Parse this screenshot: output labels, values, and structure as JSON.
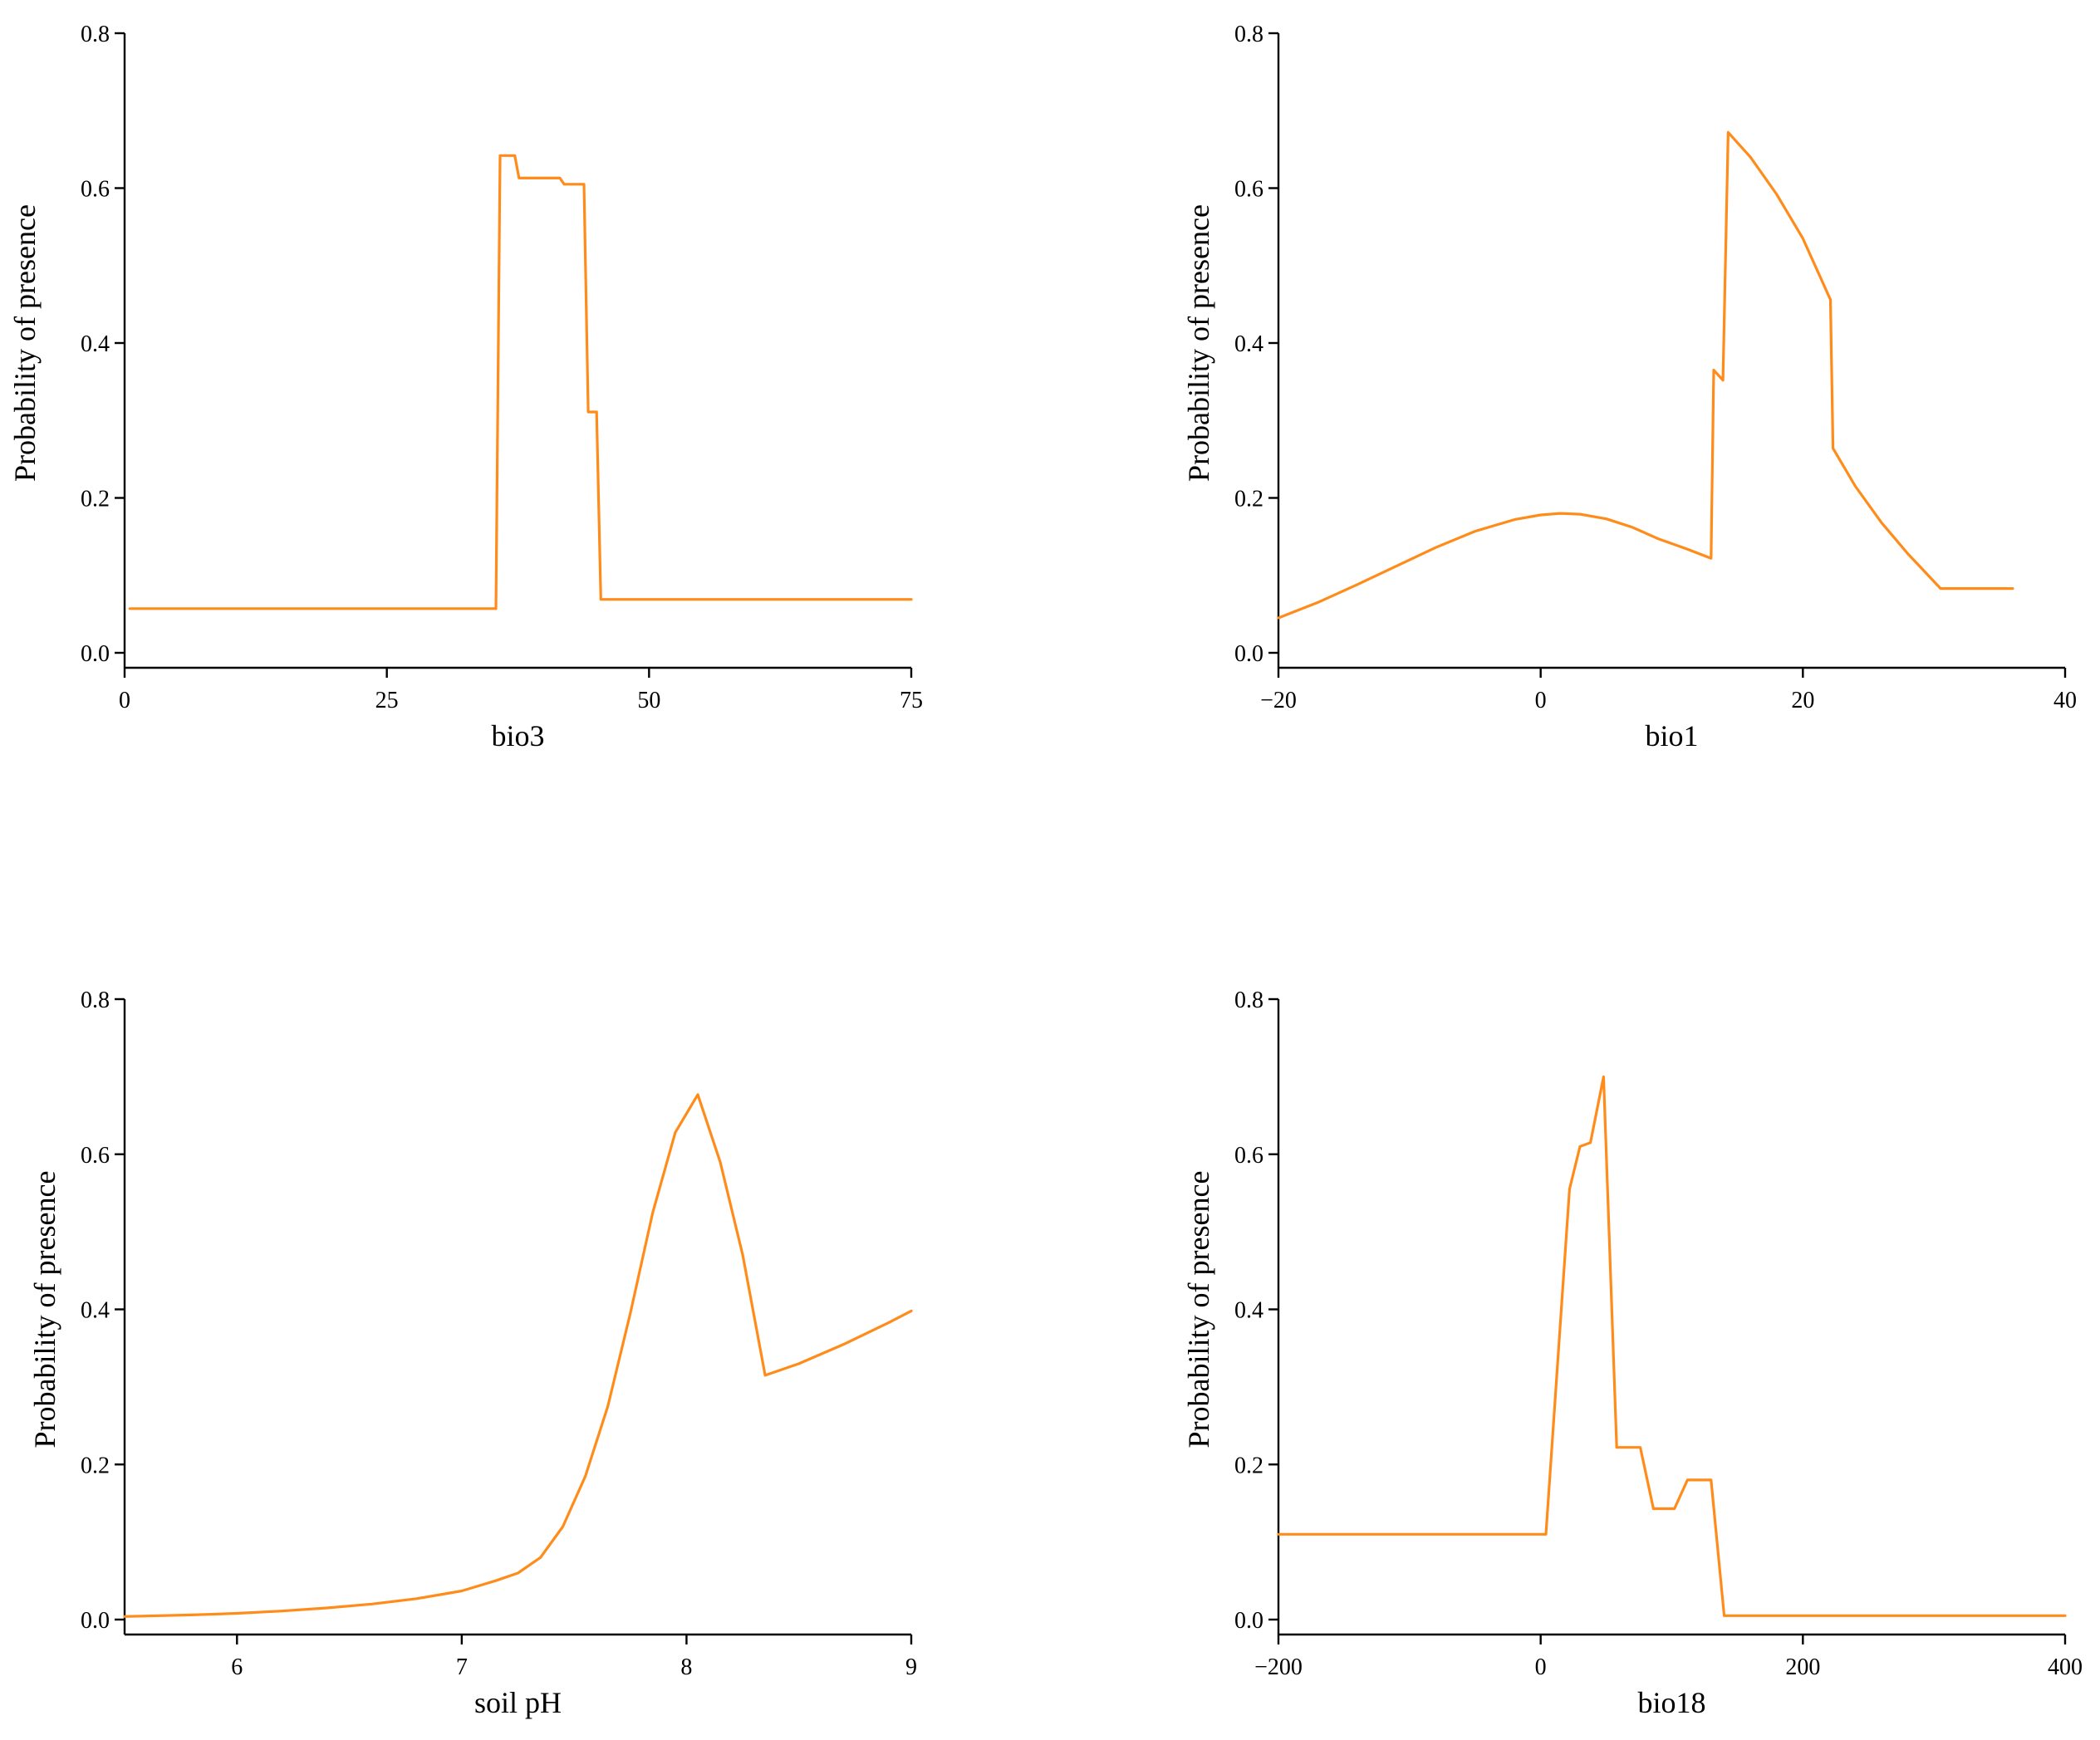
{
  "figure": {
    "line_color": "#ff8c1a"
  },
  "chart_data": [
    {
      "id": "bio3",
      "type": "line",
      "xlabel": "bio3",
      "ylabel": "Probability of presence",
      "xlim": [
        0,
        75
      ],
      "ylim": [
        0,
        0.8
      ],
      "xticks": [
        0,
        25,
        50,
        75
      ],
      "yticks": [
        0.0,
        0.2,
        0.4,
        0.6,
        0.8
      ],
      "tick_labels_x": [
        "0",
        "25",
        "50",
        "75"
      ],
      "tick_labels_y": [
        "0.0",
        "0.2",
        "0.4",
        "0.6",
        "0.8"
      ],
      "grid": false,
      "series": [
        {
          "x": [
            0.5,
            35.4,
            35.8,
            37.2,
            37.6,
            41.5,
            41.9,
            43.8,
            44.2,
            45.0,
            45.4,
            75
          ],
          "y": [
            0.057,
            0.057,
            0.642,
            0.642,
            0.613,
            0.613,
            0.605,
            0.605,
            0.311,
            0.311,
            0.069,
            0.069
          ]
        }
      ]
    },
    {
      "id": "bio1",
      "type": "line",
      "xlabel": "bio1",
      "ylabel": "Probability of presence",
      "xlim": [
        -20,
        40
      ],
      "ylim": [
        0,
        0.8
      ],
      "xticks": [
        -20,
        0,
        20,
        40
      ],
      "yticks": [
        0.0,
        0.2,
        0.4,
        0.6,
        0.8
      ],
      "tick_labels_x": [
        "−20",
        "0",
        "20",
        "40"
      ],
      "tick_labels_y": [
        "0.0",
        "0.2",
        "0.4",
        "0.6",
        "0.8"
      ],
      "grid": false,
      "series": [
        {
          "x": [
            -20,
            -17,
            -14,
            -11,
            -8,
            -5,
            -2,
            0,
            1.5,
            3,
            5,
            7,
            9,
            11,
            13,
            13.2,
            13.9,
            14.3,
            16,
            18,
            20,
            22.1,
            22.3,
            24,
            26,
            28,
            30.5,
            36
          ],
          "y": [
            0.045,
            0.065,
            0.088,
            0.112,
            0.136,
            0.157,
            0.172,
            0.178,
            0.18,
            0.179,
            0.173,
            0.162,
            0.147,
            0.135,
            0.122,
            0.365,
            0.352,
            0.672,
            0.64,
            0.592,
            0.535,
            0.456,
            0.264,
            0.215,
            0.168,
            0.128,
            0.083,
            0.083
          ]
        }
      ]
    },
    {
      "id": "soil-ph",
      "type": "line",
      "xlabel": "soil pH",
      "ylabel": "Probability of presence",
      "xlim": [
        5.5,
        9
      ],
      "ylim": [
        0,
        0.8
      ],
      "xticks": [
        6,
        7,
        8,
        9
      ],
      "yticks": [
        0.0,
        0.2,
        0.4,
        0.6,
        0.8
      ],
      "tick_labels_x": [
        "6",
        "7",
        "8",
        "9"
      ],
      "tick_labels_y": [
        "0.0",
        "0.2",
        "0.4",
        "0.6",
        "0.8"
      ],
      "grid": false,
      "series": [
        {
          "x": [
            5.5,
            5.8,
            6.0,
            6.2,
            6.4,
            6.6,
            6.8,
            7.0,
            7.15,
            7.25,
            7.35,
            7.45,
            7.55,
            7.65,
            7.75,
            7.85,
            7.95,
            8.05,
            8.15,
            8.25,
            8.35,
            8.5,
            8.7,
            8.9,
            9.0
          ],
          "y": [
            0.004,
            0.006,
            0.008,
            0.011,
            0.015,
            0.02,
            0.027,
            0.037,
            0.05,
            0.06,
            0.08,
            0.12,
            0.185,
            0.275,
            0.395,
            0.525,
            0.628,
            0.677,
            0.59,
            0.47,
            0.315,
            0.33,
            0.355,
            0.383,
            0.398
          ]
        }
      ]
    },
    {
      "id": "bio18",
      "type": "line",
      "xlabel": "bio18",
      "ylabel": "Probability of presence",
      "xlim": [
        -200,
        400
      ],
      "ylim": [
        0,
        0.8
      ],
      "xticks": [
        -200,
        0,
        200,
        400
      ],
      "yticks": [
        0.0,
        0.2,
        0.4,
        0.6,
        0.8
      ],
      "tick_labels_x": [
        "−200",
        "0",
        "200",
        "400"
      ],
      "tick_labels_y": [
        "0.0",
        "0.2",
        "0.4",
        "0.6",
        "0.8"
      ],
      "grid": false,
      "series": [
        {
          "x": [
            -200,
            4,
            22,
            30,
            38,
            48,
            58,
            76,
            86,
            102,
            112,
            130,
            140,
            400
          ],
          "y": [
            0.11,
            0.11,
            0.555,
            0.61,
            0.615,
            0.7,
            0.222,
            0.222,
            0.143,
            0.143,
            0.18,
            0.18,
            0.005,
            0.005
          ]
        }
      ]
    }
  ]
}
